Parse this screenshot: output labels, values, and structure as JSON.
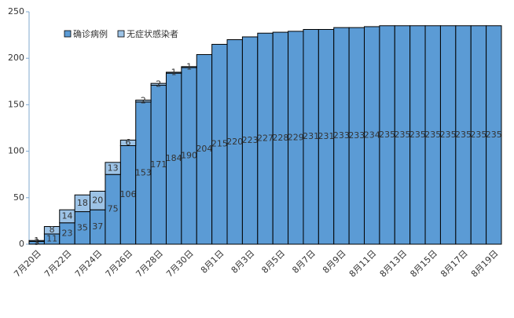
{
  "chart_data": {
    "type": "stacked-bar",
    "categories": [
      "7月20日",
      null,
      "7月22日",
      null,
      "7月24日",
      null,
      "7月26日",
      null,
      "7月28日",
      null,
      "7月30日",
      null,
      "8月1日",
      null,
      "8月3日",
      null,
      "8月5日",
      null,
      "8月7日",
      null,
      "8月9日",
      null,
      "8月11日",
      null,
      "8月13日",
      null,
      "8月15日",
      null,
      "8月17日",
      null,
      "8月19日"
    ],
    "series": [
      {
        "name": "确诊病例",
        "color": "#5b9bd5",
        "values": [
          3,
          11,
          23,
          35,
          37,
          75,
          106,
          153,
          171,
          184,
          190,
          204,
          215,
          220,
          223,
          227,
          228,
          229,
          231,
          231,
          233,
          233,
          234,
          235,
          235,
          235,
          235,
          235,
          235,
          235,
          235
        ]
      },
      {
        "name": "无症状感染者",
        "color": "#9dc3e6",
        "values": [
          1,
          8,
          14,
          18,
          20,
          13,
          6,
          2,
          2,
          1,
          1,
          null,
          null,
          null,
          null,
          null,
          null,
          null,
          null,
          null,
          null,
          null,
          null,
          null,
          null,
          null,
          null,
          null,
          null,
          null,
          null
        ]
      }
    ],
    "ylim": [
      0,
      250
    ],
    "yticks": [
      0,
      50,
      100,
      150,
      200,
      250
    ],
    "legend": "top-left"
  }
}
